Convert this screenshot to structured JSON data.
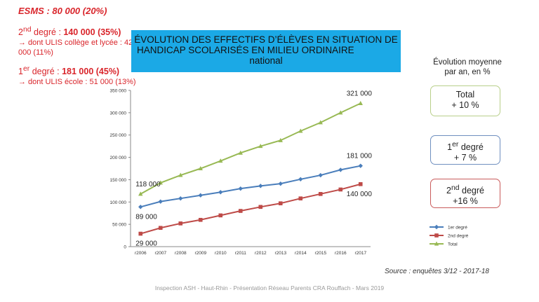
{
  "notes": {
    "esms": "ESMS : 80 000 (20%)",
    "second": {
      "prefix": "2",
      "sup": "nd",
      "mid": " degré : ",
      "value": "140 000 (35%)"
    },
    "second_sub": "→ dont ULIS collège et lycée : 42 000 (11%)",
    "first": {
      "prefix": "1",
      "sup": "er",
      "mid": " degré : ",
      "value": "181 000 (45%)"
    },
    "first_sub": "→ dont ULIS école : 51 000 (13%)"
  },
  "title": {
    "line1": "ÉVOLUTION DES EFFECTIFS D’ÉLÈVES EN SITUATION DE",
    "line2": "HANDICAP SCOLARISÉS EN MILIEU ORDINAIRE",
    "line3": "national"
  },
  "evolution": {
    "title": "Évolution moyenne par an, en %",
    "total": {
      "label": "Total",
      "value": "+ 10 %"
    },
    "first": {
      "prefix": "1",
      "sup": "er",
      "suffix": " degré",
      "value": "+ 7 %"
    },
    "second": {
      "prefix": "2",
      "sup": "nd",
      "suffix": " degré",
      "value": "+16 %"
    }
  },
  "source": "Source : enquêtes 3/12 - 2017-18",
  "footer": "Inspection ASH - Haut-Rhin - Présentation Réseau Parents CRA Rouffach - Mars 2019",
  "chart_data": {
    "type": "line",
    "categories": [
      "r2006",
      "r2007",
      "r2008",
      "r2009",
      "r2010",
      "r2011",
      "r2012",
      "r2013",
      "r2014",
      "r2015",
      "r2016",
      "r2017"
    ],
    "ylim": [
      0,
      350000
    ],
    "yticks": [
      "0",
      "50 000",
      "100 000",
      "150 000",
      "200 000",
      "250 000",
      "300 000",
      "350 000"
    ],
    "grid": false,
    "legend_position": "bottom-right",
    "series": [
      {
        "name": "1er degré",
        "color": "#4a7ebb",
        "marker": "diamond",
        "values": [
          89000,
          101000,
          108000,
          115000,
          122000,
          130000,
          136000,
          141000,
          151000,
          160000,
          172000,
          181000
        ]
      },
      {
        "name": "2nd degré",
        "color": "#be4b48",
        "marker": "square",
        "values": [
          29000,
          42000,
          52000,
          60000,
          70000,
          80000,
          89000,
          97000,
          108000,
          118000,
          128000,
          140000
        ]
      },
      {
        "name": "Total",
        "color": "#98b954",
        "marker": "triangle",
        "values": [
          118000,
          143000,
          160000,
          175000,
          192000,
          210000,
          225000,
          238000,
          259000,
          278000,
          300000,
          321000
        ]
      }
    ],
    "annotations": [
      {
        "text": "321 000",
        "series": 2,
        "index": 11,
        "pos": "above"
      },
      {
        "text": "181 000",
        "series": 0,
        "index": 11,
        "pos": "above"
      },
      {
        "text": "140 000",
        "series": 1,
        "index": 11,
        "pos": "below"
      },
      {
        "text": "118 000",
        "series": 2,
        "index": 0,
        "pos": "above"
      },
      {
        "text": "89 000",
        "series": 0,
        "index": 0,
        "pos": "below"
      },
      {
        "text": "29 000",
        "series": 1,
        "index": 0,
        "pos": "below"
      }
    ]
  }
}
